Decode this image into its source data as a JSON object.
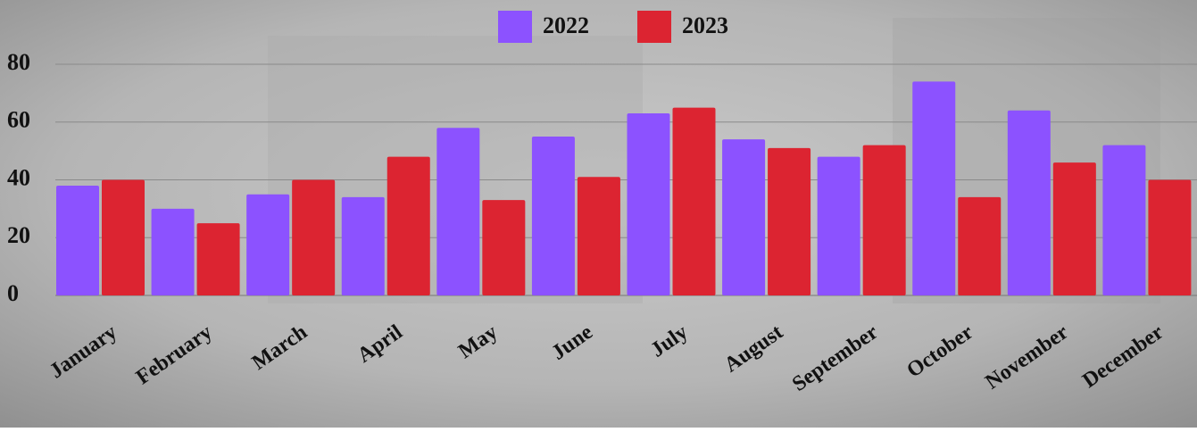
{
  "chart_data": {
    "type": "bar",
    "categories": [
      "January",
      "February",
      "March",
      "April",
      "May",
      "June",
      "July",
      "August",
      "September",
      "October",
      "November",
      "December"
    ],
    "series": [
      {
        "name": "2022",
        "color": "#8c52ff",
        "values": [
          38,
          30,
          35,
          34,
          58,
          55,
          63,
          54,
          48,
          74,
          64,
          52
        ]
      },
      {
        "name": "2023",
        "color": "#dc2431",
        "values": [
          40,
          25,
          40,
          48,
          33,
          41,
          65,
          51,
          52,
          34,
          46,
          40
        ]
      }
    ],
    "ylim": [
      0,
      80
    ],
    "yticks": [
      0,
      20,
      40,
      60,
      80
    ],
    "grid": true,
    "legend": "top"
  }
}
